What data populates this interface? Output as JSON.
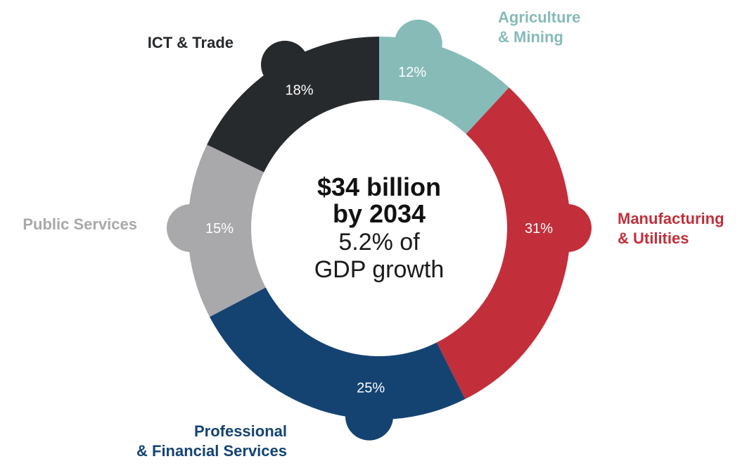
{
  "chart_data": {
    "type": "pie",
    "variant": "donut",
    "center_text": {
      "main_line1": "$34 billion",
      "main_line2": "by 2034",
      "sub_line1": "5.2% of",
      "sub_line2": "GDP growth"
    },
    "slices": [
      {
        "id": "agriculture-mining",
        "label_lines": [
          "Agriculture",
          "& Mining"
        ],
        "value": 12,
        "value_label": "12%",
        "color": "#86BBB8"
      },
      {
        "id": "manufacturing-utilities",
        "label_lines": [
          "Manufacturing",
          "& Utilities"
        ],
        "value": 31,
        "value_label": "31%",
        "color": "#C22F3A"
      },
      {
        "id": "professional-financial",
        "label_lines": [
          "Professional",
          "& Financial Services"
        ],
        "value": 25,
        "value_label": "25%",
        "color": "#144372"
      },
      {
        "id": "public-services",
        "label_lines": [
          "Public Services"
        ],
        "value": 15,
        "value_label": "15%",
        "color": "#A9A8AA"
      },
      {
        "id": "ict-trade",
        "label_lines": [
          "ICT & Trade"
        ],
        "value": 18,
        "value_label": "18%",
        "color": "#272A2D"
      }
    ]
  }
}
